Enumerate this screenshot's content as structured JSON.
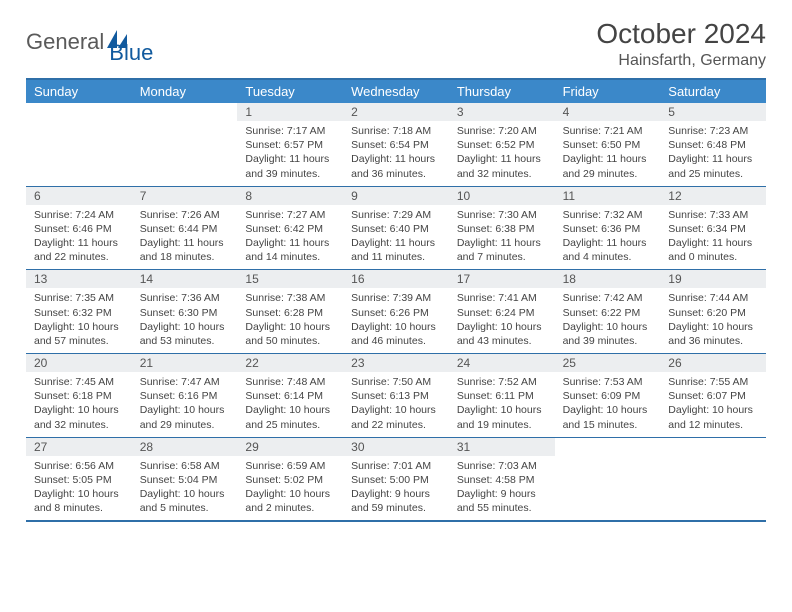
{
  "brand": {
    "name1": "General",
    "name2": "Blue",
    "logo_color": "#115a9e"
  },
  "title": "October 2024",
  "location": "Hainsfarth, Germany",
  "colors": {
    "header_bg": "#3b88c9",
    "header_text": "#ffffff",
    "rule": "#2f6fa8",
    "daynum_bg": "#eceef0",
    "body_text": "#444444"
  },
  "fonts": {
    "title_size": 28,
    "location_size": 16,
    "dayheader_size": 13,
    "daynum_size": 12,
    "cell_size": 10.5
  },
  "day_names": [
    "Sunday",
    "Monday",
    "Tuesday",
    "Wednesday",
    "Thursday",
    "Friday",
    "Saturday"
  ],
  "weeks": [
    [
      null,
      null,
      {
        "n": "1",
        "sunrise": "7:17 AM",
        "sunset": "6:57 PM",
        "daylight": "11 hours and 39 minutes."
      },
      {
        "n": "2",
        "sunrise": "7:18 AM",
        "sunset": "6:54 PM",
        "daylight": "11 hours and 36 minutes."
      },
      {
        "n": "3",
        "sunrise": "7:20 AM",
        "sunset": "6:52 PM",
        "daylight": "11 hours and 32 minutes."
      },
      {
        "n": "4",
        "sunrise": "7:21 AM",
        "sunset": "6:50 PM",
        "daylight": "11 hours and 29 minutes."
      },
      {
        "n": "5",
        "sunrise": "7:23 AM",
        "sunset": "6:48 PM",
        "daylight": "11 hours and 25 minutes."
      }
    ],
    [
      {
        "n": "6",
        "sunrise": "7:24 AM",
        "sunset": "6:46 PM",
        "daylight": "11 hours and 22 minutes."
      },
      {
        "n": "7",
        "sunrise": "7:26 AM",
        "sunset": "6:44 PM",
        "daylight": "11 hours and 18 minutes."
      },
      {
        "n": "8",
        "sunrise": "7:27 AM",
        "sunset": "6:42 PM",
        "daylight": "11 hours and 14 minutes."
      },
      {
        "n": "9",
        "sunrise": "7:29 AM",
        "sunset": "6:40 PM",
        "daylight": "11 hours and 11 minutes."
      },
      {
        "n": "10",
        "sunrise": "7:30 AM",
        "sunset": "6:38 PM",
        "daylight": "11 hours and 7 minutes."
      },
      {
        "n": "11",
        "sunrise": "7:32 AM",
        "sunset": "6:36 PM",
        "daylight": "11 hours and 4 minutes."
      },
      {
        "n": "12",
        "sunrise": "7:33 AM",
        "sunset": "6:34 PM",
        "daylight": "11 hours and 0 minutes."
      }
    ],
    [
      {
        "n": "13",
        "sunrise": "7:35 AM",
        "sunset": "6:32 PM",
        "daylight": "10 hours and 57 minutes."
      },
      {
        "n": "14",
        "sunrise": "7:36 AM",
        "sunset": "6:30 PM",
        "daylight": "10 hours and 53 minutes."
      },
      {
        "n": "15",
        "sunrise": "7:38 AM",
        "sunset": "6:28 PM",
        "daylight": "10 hours and 50 minutes."
      },
      {
        "n": "16",
        "sunrise": "7:39 AM",
        "sunset": "6:26 PM",
        "daylight": "10 hours and 46 minutes."
      },
      {
        "n": "17",
        "sunrise": "7:41 AM",
        "sunset": "6:24 PM",
        "daylight": "10 hours and 43 minutes."
      },
      {
        "n": "18",
        "sunrise": "7:42 AM",
        "sunset": "6:22 PM",
        "daylight": "10 hours and 39 minutes."
      },
      {
        "n": "19",
        "sunrise": "7:44 AM",
        "sunset": "6:20 PM",
        "daylight": "10 hours and 36 minutes."
      }
    ],
    [
      {
        "n": "20",
        "sunrise": "7:45 AM",
        "sunset": "6:18 PM",
        "daylight": "10 hours and 32 minutes."
      },
      {
        "n": "21",
        "sunrise": "7:47 AM",
        "sunset": "6:16 PM",
        "daylight": "10 hours and 29 minutes."
      },
      {
        "n": "22",
        "sunrise": "7:48 AM",
        "sunset": "6:14 PM",
        "daylight": "10 hours and 25 minutes."
      },
      {
        "n": "23",
        "sunrise": "7:50 AM",
        "sunset": "6:13 PM",
        "daylight": "10 hours and 22 minutes."
      },
      {
        "n": "24",
        "sunrise": "7:52 AM",
        "sunset": "6:11 PM",
        "daylight": "10 hours and 19 minutes."
      },
      {
        "n": "25",
        "sunrise": "7:53 AM",
        "sunset": "6:09 PM",
        "daylight": "10 hours and 15 minutes."
      },
      {
        "n": "26",
        "sunrise": "7:55 AM",
        "sunset": "6:07 PM",
        "daylight": "10 hours and 12 minutes."
      }
    ],
    [
      {
        "n": "27",
        "sunrise": "6:56 AM",
        "sunset": "5:05 PM",
        "daylight": "10 hours and 8 minutes."
      },
      {
        "n": "28",
        "sunrise": "6:58 AM",
        "sunset": "5:04 PM",
        "daylight": "10 hours and 5 minutes."
      },
      {
        "n": "29",
        "sunrise": "6:59 AM",
        "sunset": "5:02 PM",
        "daylight": "10 hours and 2 minutes."
      },
      {
        "n": "30",
        "sunrise": "7:01 AM",
        "sunset": "5:00 PM",
        "daylight": "9 hours and 59 minutes."
      },
      {
        "n": "31",
        "sunrise": "7:03 AM",
        "sunset": "4:58 PM",
        "daylight": "9 hours and 55 minutes."
      },
      null,
      null
    ]
  ],
  "labels": {
    "sunrise": "Sunrise: ",
    "sunset": "Sunset: ",
    "daylight": "Daylight: "
  }
}
